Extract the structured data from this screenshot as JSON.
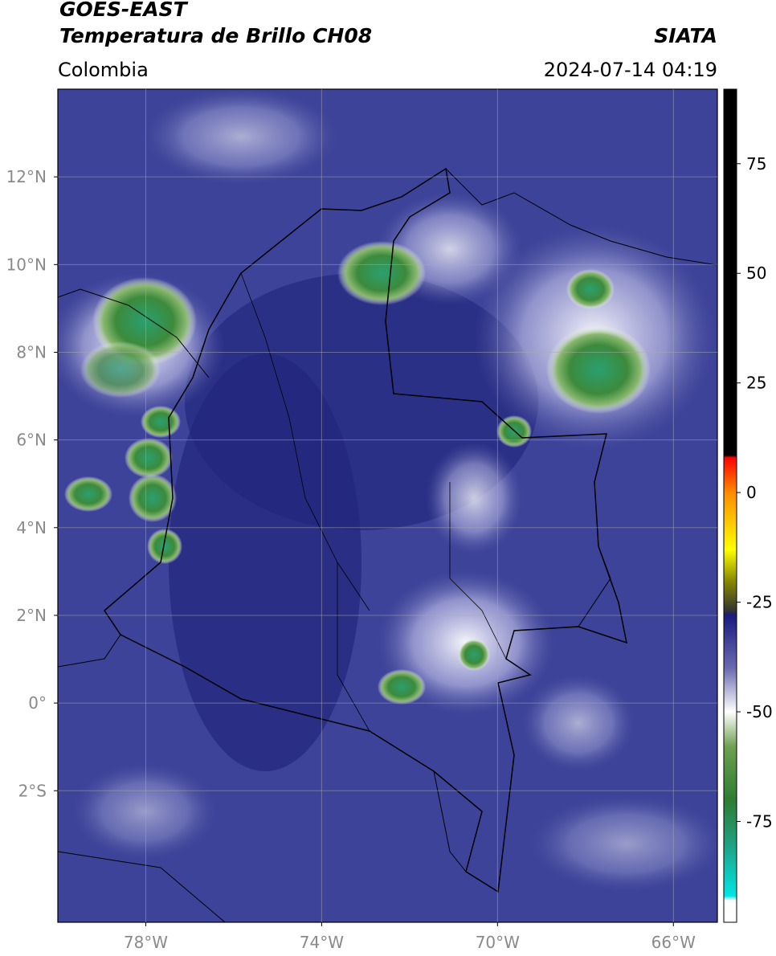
{
  "header": {
    "title": "GOES-EAST",
    "subtitle": "Temperatura de Brillo CH08",
    "source": "SIATA",
    "region": "Colombia",
    "timestamp": "2024-07-14 04:19"
  },
  "map": {
    "xlim": [
      -80,
      -65
    ],
    "ylim": [
      -5,
      14
    ],
    "grid": true,
    "xticks": [
      {
        "value": -78,
        "label": "78°W"
      },
      {
        "value": -74,
        "label": "74°W"
      },
      {
        "value": -70,
        "label": "70°W"
      },
      {
        "value": -66,
        "label": "66°W"
      }
    ],
    "yticks": [
      {
        "value": 12,
        "label": "12°N"
      },
      {
        "value": 10,
        "label": "10°N"
      },
      {
        "value": 8,
        "label": "8°N"
      },
      {
        "value": 6,
        "label": "6°N"
      },
      {
        "value": 4,
        "label": "4°N"
      },
      {
        "value": 2,
        "label": "2°N"
      },
      {
        "value": 0,
        "label": "0°"
      },
      {
        "value": -2,
        "label": "2°S"
      }
    ]
  },
  "colorbar": {
    "lim": [
      -98,
      92
    ],
    "ticks": [
      75,
      50,
      25,
      0,
      -25,
      -50,
      -75
    ],
    "colormap": [
      {
        "value": 92,
        "color": "#000000"
      },
      {
        "value": 8.5,
        "color": "#000000"
      },
      {
        "value": 8,
        "color": "#ff0000"
      },
      {
        "value": 0,
        "color": "#ff8c00"
      },
      {
        "value": -13,
        "color": "#ffff00"
      },
      {
        "value": -20,
        "color": "#8b8b00"
      },
      {
        "value": -27,
        "color": "#333333"
      },
      {
        "value": -28,
        "color": "#1a1a80"
      },
      {
        "value": -40,
        "color": "#6a6ab0"
      },
      {
        "value": -50,
        "color": "#ffffff"
      },
      {
        "value": -58,
        "color": "#6fa050"
      },
      {
        "value": -70,
        "color": "#2e7d32"
      },
      {
        "value": -80,
        "color": "#20a080"
      },
      {
        "value": -92,
        "color": "#00e5e5"
      },
      {
        "value": -93,
        "color": "#ffffff"
      },
      {
        "value": -98,
        "color": "#ffffff"
      }
    ]
  }
}
